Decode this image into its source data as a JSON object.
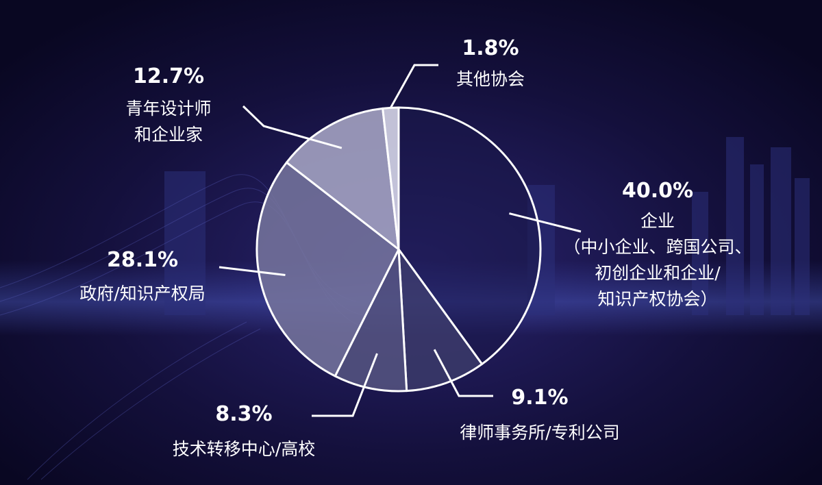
{
  "chart_data": {
    "type": "pie",
    "slices": [
      {
        "percent_label": "40.0%",
        "value": 40.0,
        "label_lines": [
          "企业",
          "（中小企业、跨国公司、",
          "初创企业和企业/",
          "知识产权协会）"
        ],
        "color": "#1a1748"
      },
      {
        "percent_label": "9.1%",
        "value": 9.1,
        "label_lines": [
          "律师事务所/专利公司"
        ],
        "color": "#3a3969"
      },
      {
        "percent_label": "8.3%",
        "value": 8.3,
        "label_lines": [
          "技术转移中心/高校"
        ],
        "color": "#54537f"
      },
      {
        "percent_label": "28.1%",
        "value": 28.1,
        "label_lines": [
          "政府/知识产权局"
        ],
        "color": "#74739c"
      },
      {
        "percent_label": "12.7%",
        "value": 12.7,
        "label_lines": [
          "青年设计师",
          "和企业家"
        ],
        "color": "#a6a5c4"
      },
      {
        "percent_label": "1.8%",
        "value": 1.8,
        "label_lines": [
          "其他协会"
        ],
        "color": "#dadaea"
      }
    ],
    "start_angle": "12 o'clock",
    "direction": "clockwise",
    "legend": "none"
  },
  "colors": {
    "background": "#0d0a2c",
    "outline": "#ffffff",
    "text": "#ffffff"
  }
}
